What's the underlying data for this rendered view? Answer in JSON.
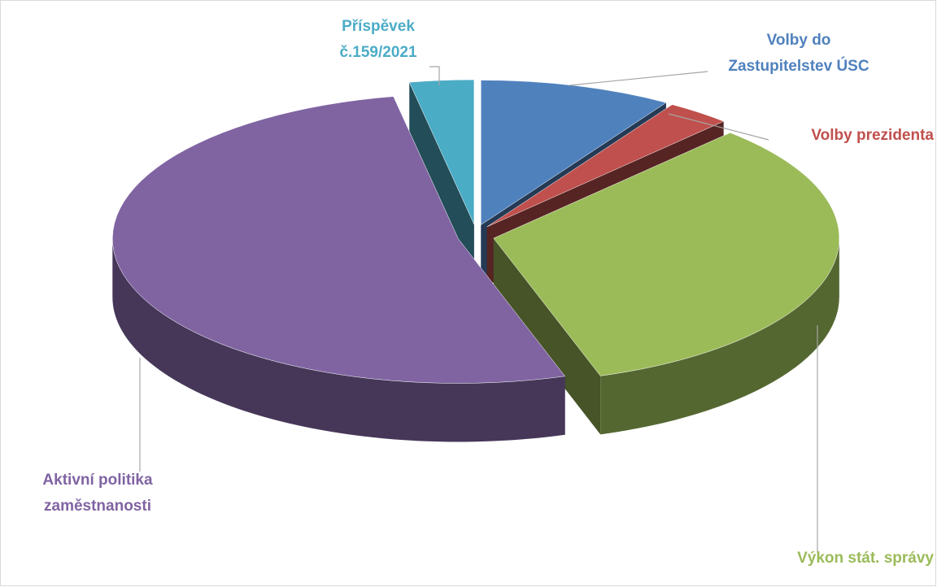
{
  "chart_data": {
    "type": "pie3d",
    "categories": [
      "Volby do Zastupitelstev ÚSC",
      "Volby prezidenta",
      "Výkon stát. správy",
      "Aktivní politika zaměstnanosti",
      "Příspěvek č.159/2021"
    ],
    "values": [
      9,
      3,
      33,
      52,
      3
    ],
    "colors": [
      "#4f81bd",
      "#c0504d",
      "#9bbb59",
      "#8064a2",
      "#4bacc6"
    ]
  }
}
